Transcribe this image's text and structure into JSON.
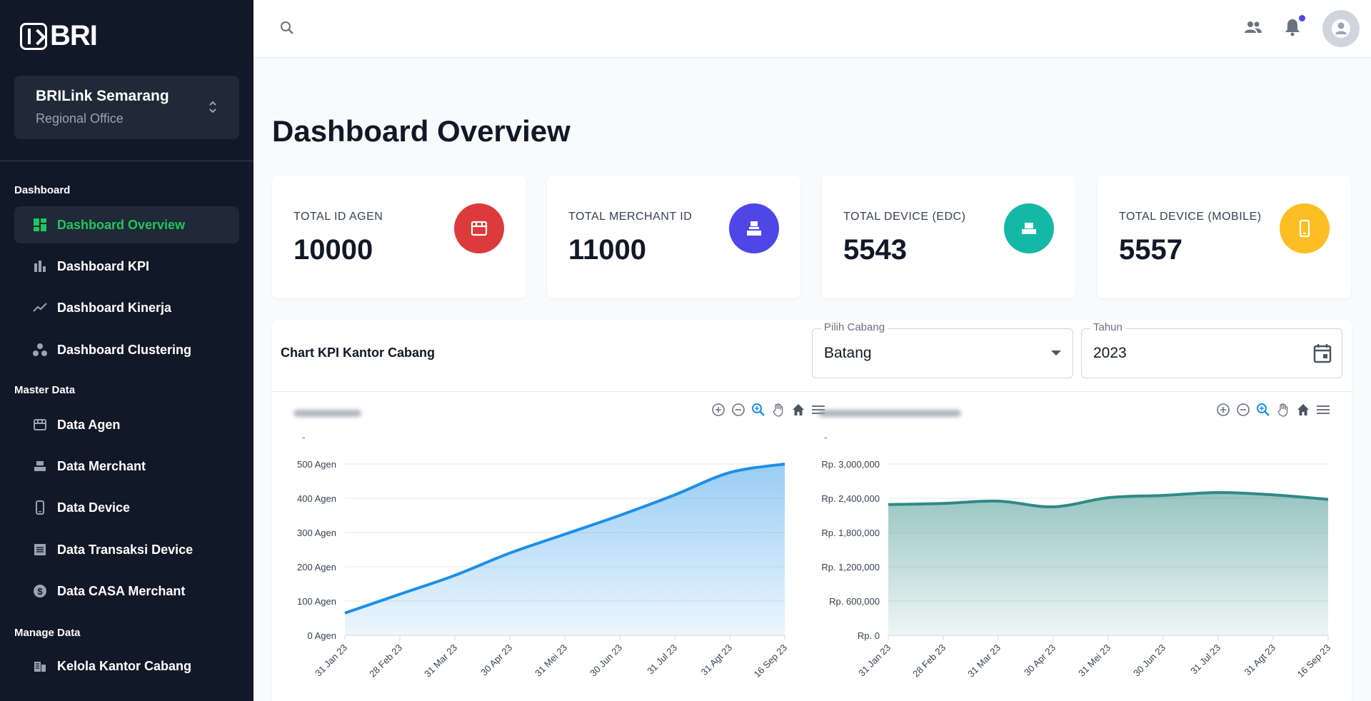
{
  "brand": {
    "logo_text": "BRI"
  },
  "org": {
    "name": "BRILink Semarang",
    "subtitle": "Regional Office"
  },
  "sidebar": {
    "sections": [
      {
        "title": "Dashboard"
      },
      {
        "title": "Master Data"
      },
      {
        "title": "Manage Data"
      }
    ],
    "items": [
      {
        "label": "Dashboard Overview",
        "icon": "dashboard-icon",
        "active": true
      },
      {
        "label": "Dashboard KPI",
        "icon": "bar-chart-icon"
      },
      {
        "label": "Dashboard Kinerja",
        "icon": "trend-line-icon"
      },
      {
        "label": "Dashboard Clustering",
        "icon": "cluster-icon"
      },
      {
        "label": "Data Agen",
        "icon": "store-icon"
      },
      {
        "label": "Data Merchant",
        "icon": "cash-register-icon"
      },
      {
        "label": "Data Device",
        "icon": "phone-icon"
      },
      {
        "label": "Data Transaksi Device",
        "icon": "receipt-icon"
      },
      {
        "label": "Data CASA Merchant",
        "icon": "dollar-icon"
      },
      {
        "label": "Kelola Kantor Cabang",
        "icon": "building-icon"
      }
    ]
  },
  "page": {
    "title": "Dashboard Overview"
  },
  "stats": [
    {
      "label": "TOTAL ID AGEN",
      "value": "10000",
      "color": "#dc3b3b",
      "icon": "store-icon"
    },
    {
      "label": "TOTAL MERCHANT ID",
      "value": "11000",
      "color": "#5046e5",
      "icon": "cash-register-icon"
    },
    {
      "label": "TOTAL DEVICE (EDC)",
      "value": "5543",
      "color": "#14b8a6",
      "icon": "edc-device-icon"
    },
    {
      "label": "TOTAL DEVICE (MOBILE)",
      "value": "5557",
      "color": "#fbbf24",
      "icon": "mobile-icon"
    }
  ],
  "panel": {
    "title": "Chart KPI Kantor Cabang",
    "branch_label": "Pilih Cabang",
    "branch_value": "Batang",
    "year_label": "Tahun",
    "year_value": "2023"
  },
  "chart_data": [
    {
      "type": "area",
      "subtitle": "-",
      "x": [
        "31 Jan 23",
        "28 Feb 23",
        "31 Mar 23",
        "30 Apr 23",
        "31 Mei 23",
        "30 Jun 23",
        "31 Jul 23",
        "31 Agt 23",
        "16 Sep 23"
      ],
      "yticks": [
        "0 Agen",
        "100 Agen",
        "200 Agen",
        "300 Agen",
        "400 Agen",
        "500 Agen"
      ],
      "ylim": [
        0,
        500
      ],
      "series": [
        {
          "values": [
            65,
            120,
            175,
            240,
            295,
            350,
            410,
            475,
            500
          ]
        }
      ],
      "color": "#1d8fe6"
    },
    {
      "type": "area",
      "subtitle": "-",
      "x": [
        "31 Jan 23",
        "28 Feb 23",
        "31 Mar 23",
        "30 Apr 23",
        "31 Mei 23",
        "30 Jun 23",
        "31 Jul 23",
        "31 Agt 23",
        "16 Sep 23"
      ],
      "yticks": [
        "Rp. 0",
        "Rp. 600,000",
        "Rp. 1,200,000",
        "Rp. 1,800,000",
        "Rp. 2,400,000",
        "Rp. 3,000,000"
      ],
      "ylim": [
        0,
        3000000
      ],
      "series": [
        {
          "values": [
            2290000,
            2310000,
            2350000,
            2250000,
            2410000,
            2450000,
            2500000,
            2460000,
            2380000
          ]
        }
      ],
      "color": "#2f8a86"
    }
  ]
}
